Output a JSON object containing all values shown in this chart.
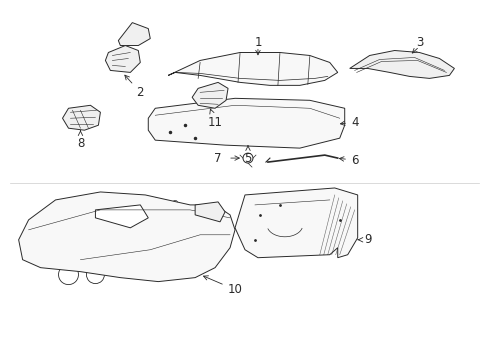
{
  "background_color": "#ffffff",
  "line_color": "#2a2a2a",
  "fig_width": 4.89,
  "fig_height": 3.6,
  "dpi": 100,
  "label_fontsize": 8.5
}
